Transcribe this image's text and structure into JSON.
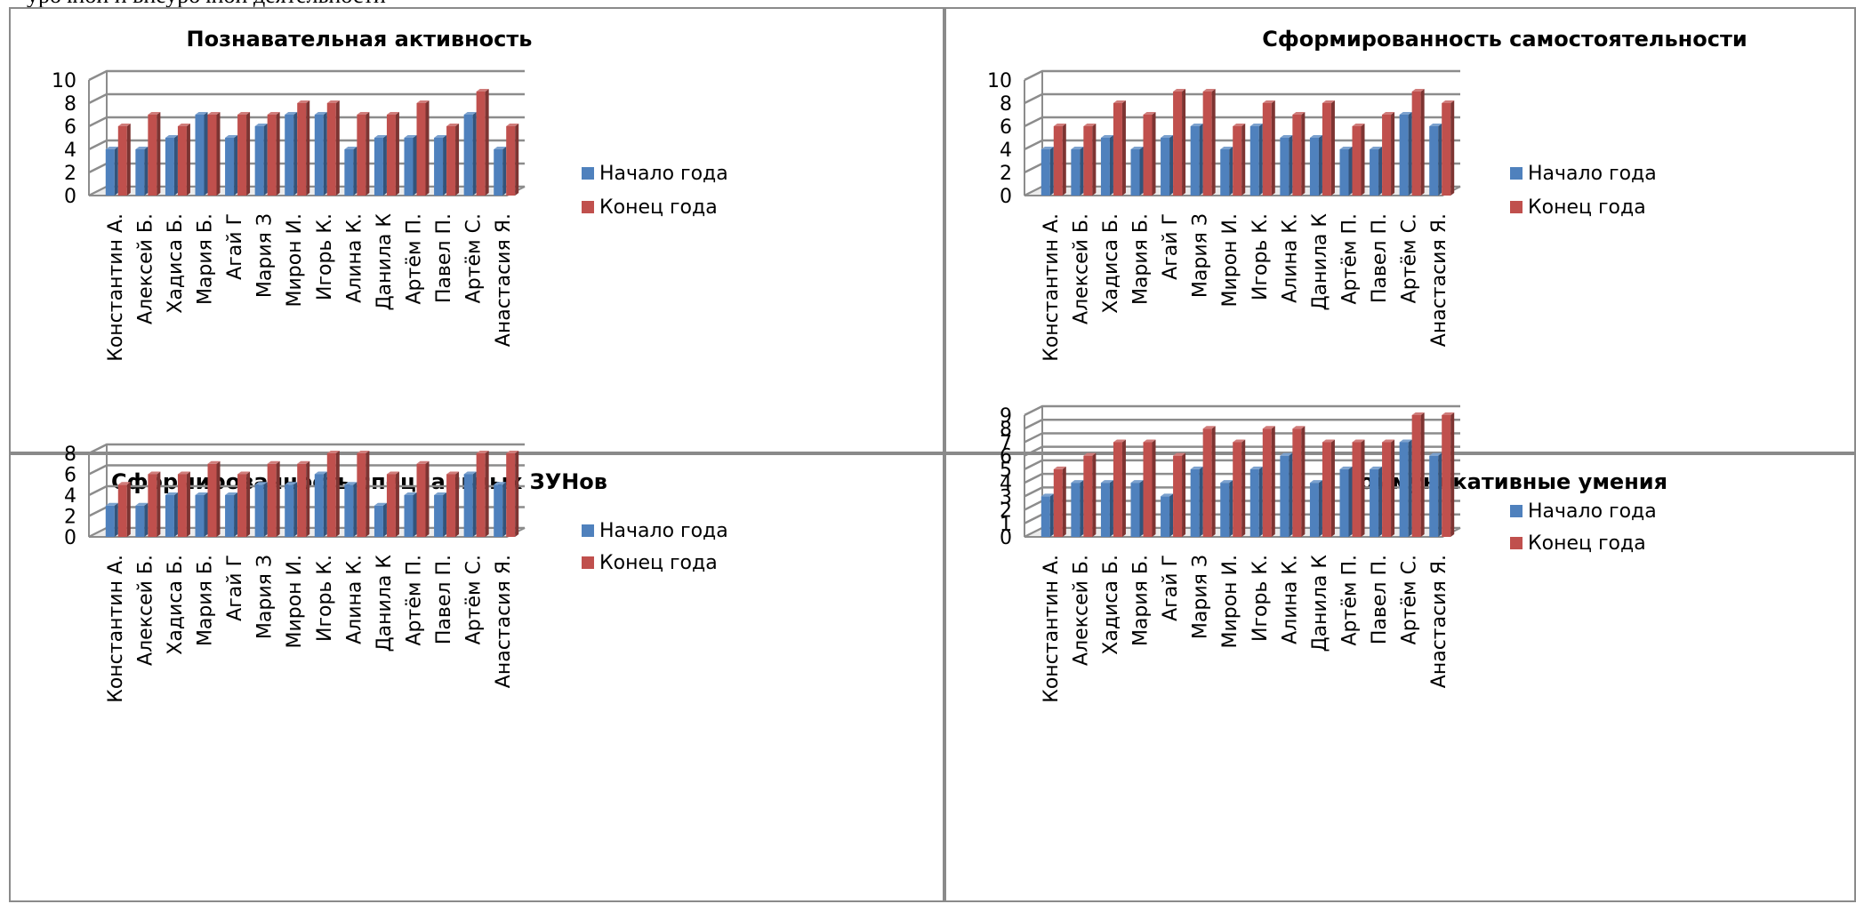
{
  "page": {
    "top_text": "урочной и внеурочной деятельности"
  },
  "legend": {
    "start": "Начало года",
    "end": "Конец года"
  },
  "colors": {
    "start": "#4f81bd",
    "end": "#c0504d",
    "grid": "#8c8c8c"
  },
  "chart_data": [
    {
      "type": "bar",
      "title": "Познавательная активность",
      "categories": [
        "Константин А.",
        "Алексей Б.",
        "Хадиса Б.",
        "Мария Б.",
        "Агай Г",
        "Мария З",
        "Мирон И.",
        "Игорь К.",
        "Алина К.",
        "Данила К",
        "Артём П.",
        "Павел П.",
        "Артём С.",
        "Анастасия  Я."
      ],
      "series": [
        {
          "name": "Начало года",
          "values": [
            4,
            4,
            5,
            7,
            5,
            6,
            7,
            7,
            4,
            5,
            5,
            5,
            7,
            4
          ]
        },
        {
          "name": "Конец года",
          "values": [
            6,
            7,
            6,
            7,
            7,
            7,
            8,
            8,
            7,
            7,
            8,
            6,
            9,
            6
          ]
        }
      ],
      "yticks": [
        0,
        2,
        4,
        6,
        8,
        10
      ],
      "ylim": [
        0,
        10
      ],
      "legend_position": "right",
      "grid": true
    },
    {
      "type": "bar",
      "title": "Сформированность самостоятельности",
      "categories": [
        "Константин А.",
        "Алексей Б.",
        "Хадиса Б.",
        "Мария Б.",
        "Агай Г",
        "Мария З",
        "Мирон И.",
        "Игорь К.",
        "Алина К.",
        "Данила К",
        "Артём П.",
        "Павел П.",
        "Артём С.",
        "Анастасия  Я."
      ],
      "series": [
        {
          "name": "Начало года",
          "values": [
            4,
            4,
            5,
            4,
            5,
            6,
            4,
            6,
            5,
            5,
            4,
            4,
            7,
            6
          ]
        },
        {
          "name": "Конец года",
          "values": [
            6,
            6,
            8,
            7,
            9,
            9,
            6,
            8,
            7,
            8,
            6,
            7,
            9,
            8
          ]
        }
      ],
      "yticks": [
        0,
        2,
        4,
        6,
        8,
        10
      ],
      "ylim": [
        0,
        10
      ],
      "legend_position": "right",
      "grid": true
    },
    {
      "type": "bar",
      "title": "Сформированность специальных ЗУНов",
      "categories": [
        "Константин А.",
        "Алексей Б.",
        "Хадиса Б.",
        "Мария Б.",
        "Агай Г",
        "Мария З",
        "Мирон И.",
        "Игорь К.",
        "Алина К.",
        "Данила К",
        "Артём П.",
        "Павел П.",
        "Артём С.",
        "Анастасия  Я."
      ],
      "series": [
        {
          "name": "Начало года",
          "values": [
            3,
            3,
            4,
            4,
            4,
            5,
            5,
            6,
            5,
            3,
            4,
            4,
            6,
            5
          ]
        },
        {
          "name": "Конец года",
          "values": [
            5,
            6,
            6,
            7,
            6,
            7,
            7,
            8,
            8,
            6,
            7,
            6,
            8,
            8
          ]
        }
      ],
      "yticks": [
        0,
        2,
        4,
        6,
        8
      ],
      "ylim": [
        0,
        8
      ],
      "legend_position": "right",
      "grid": true
    },
    {
      "type": "bar",
      "title": "Коммуникативные умения",
      "categories": [
        "Константин А.",
        "Алексей Б.",
        "Хадиса Б.",
        "Мария Б.",
        "Агай Г",
        "Мария З",
        "Мирон И.",
        "Игорь К.",
        "Алина К.",
        "Данила К",
        "Артём П.",
        "Павел П.",
        "Артём С.",
        "Анастасия  Я."
      ],
      "series": [
        {
          "name": "Начало года",
          "values": [
            3,
            4,
            4,
            4,
            3,
            5,
            4,
            5,
            6,
            4,
            5,
            5,
            7,
            6
          ]
        },
        {
          "name": "Конец года",
          "values": [
            5,
            6,
            7,
            7,
            6,
            8,
            7,
            8,
            8,
            7,
            7,
            7,
            9,
            9
          ]
        }
      ],
      "yticks": [
        0,
        1,
        2,
        3,
        4,
        5,
        6,
        7,
        8,
        9
      ],
      "ylim": [
        0,
        9
      ],
      "legend_position": "right",
      "grid": true
    }
  ]
}
